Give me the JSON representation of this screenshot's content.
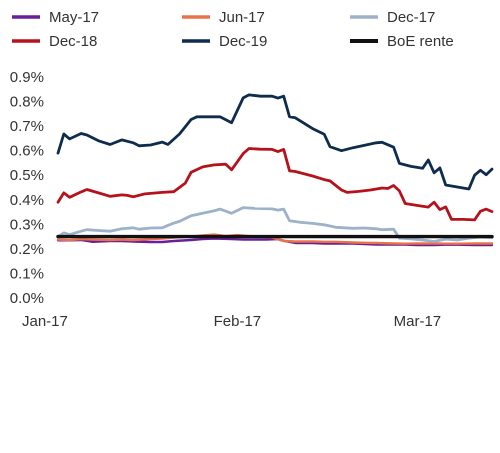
{
  "chart_data": {
    "type": "line",
    "title": "",
    "xlabel": "",
    "ylabel": "",
    "ylim": [
      0,
      0.9
    ],
    "y_unit": "%",
    "y_ticks": [
      "0.0%",
      "0.1%",
      "0.2%",
      "0.3%",
      "0.4%",
      "0.5%",
      "0.6%",
      "0.7%",
      "0.8%",
      "0.9%"
    ],
    "x_ticks": [
      "Jan-17",
      "Feb-17",
      "Mar-17"
    ],
    "grid": false,
    "legend_position": "top",
    "x_range": [
      "2017-01-01",
      "2017-03-17"
    ],
    "series": [
      {
        "name": "May-17",
        "color": "#6a1f9a",
        "points": [
          [
            "2017-01-01",
            0.235
          ],
          [
            "2017-01-03",
            0.235
          ],
          [
            "2017-01-05",
            0.236
          ],
          [
            "2017-01-07",
            0.229
          ],
          [
            "2017-01-10",
            0.232
          ],
          [
            "2017-01-12",
            0.232
          ],
          [
            "2017-01-14",
            0.23
          ],
          [
            "2017-01-17",
            0.228
          ],
          [
            "2017-01-19",
            0.228
          ],
          [
            "2017-01-21",
            0.232
          ],
          [
            "2017-01-24",
            0.236
          ],
          [
            "2017-01-26",
            0.24
          ],
          [
            "2017-01-28",
            0.242
          ],
          [
            "2017-01-31",
            0.24
          ],
          [
            "2017-02-02",
            0.238
          ],
          [
            "2017-02-04",
            0.238
          ],
          [
            "2017-02-06",
            0.238
          ],
          [
            "2017-02-08",
            0.24
          ],
          [
            "2017-02-09",
            0.233
          ],
          [
            "2017-02-11",
            0.224
          ],
          [
            "2017-02-14",
            0.224
          ],
          [
            "2017-02-16",
            0.222
          ],
          [
            "2017-02-18",
            0.222
          ],
          [
            "2017-02-21",
            0.222
          ],
          [
            "2017-02-23",
            0.22
          ],
          [
            "2017-02-25",
            0.218
          ],
          [
            "2017-02-28",
            0.218
          ],
          [
            "2017-03-02",
            0.218
          ],
          [
            "2017-03-04",
            0.216
          ],
          [
            "2017-03-07",
            0.216
          ],
          [
            "2017-03-09",
            0.217
          ],
          [
            "2017-03-11",
            0.217
          ],
          [
            "2017-03-14",
            0.216
          ],
          [
            "2017-03-17",
            0.216
          ]
        ]
      },
      {
        "name": "Jun-17",
        "color": "#e8734a",
        "points": [
          [
            "2017-01-01",
            0.238
          ],
          [
            "2017-01-03",
            0.236
          ],
          [
            "2017-01-05",
            0.24
          ],
          [
            "2017-01-07",
            0.238
          ],
          [
            "2017-01-10",
            0.236
          ],
          [
            "2017-01-12",
            0.238
          ],
          [
            "2017-01-14",
            0.236
          ],
          [
            "2017-01-17",
            0.24
          ],
          [
            "2017-01-19",
            0.242
          ],
          [
            "2017-01-21",
            0.246
          ],
          [
            "2017-01-24",
            0.25
          ],
          [
            "2017-01-26",
            0.255
          ],
          [
            "2017-01-28",
            0.258
          ],
          [
            "2017-01-30",
            0.252
          ],
          [
            "2017-02-01",
            0.256
          ],
          [
            "2017-02-03",
            0.252
          ],
          [
            "2017-02-05",
            0.25
          ],
          [
            "2017-02-07",
            0.246
          ],
          [
            "2017-02-09",
            0.232
          ],
          [
            "2017-02-11",
            0.23
          ],
          [
            "2017-02-14",
            0.23
          ],
          [
            "2017-02-16",
            0.229
          ],
          [
            "2017-02-18",
            0.229
          ],
          [
            "2017-02-21",
            0.226
          ],
          [
            "2017-02-23",
            0.225
          ],
          [
            "2017-02-25",
            0.224
          ],
          [
            "2017-02-28",
            0.222
          ],
          [
            "2017-03-02",
            0.221
          ],
          [
            "2017-03-04",
            0.222
          ],
          [
            "2017-03-07",
            0.222
          ],
          [
            "2017-03-09",
            0.221
          ],
          [
            "2017-03-11",
            0.221
          ],
          [
            "2017-03-14",
            0.222
          ],
          [
            "2017-03-17",
            0.222
          ]
        ]
      },
      {
        "name": "Dec-17",
        "color": "#9db1c8",
        "points": [
          [
            "2017-01-01",
            0.25
          ],
          [
            "2017-01-02",
            0.265
          ],
          [
            "2017-01-03",
            0.258
          ],
          [
            "2017-01-05",
            0.272
          ],
          [
            "2017-01-06",
            0.278
          ],
          [
            "2017-01-08",
            0.275
          ],
          [
            "2017-01-10",
            0.272
          ],
          [
            "2017-01-12",
            0.282
          ],
          [
            "2017-01-14",
            0.286
          ],
          [
            "2017-01-15",
            0.28
          ],
          [
            "2017-01-17",
            0.285
          ],
          [
            "2017-01-19",
            0.286
          ],
          [
            "2017-01-21",
            0.305
          ],
          [
            "2017-01-22",
            0.312
          ],
          [
            "2017-01-24",
            0.335
          ],
          [
            "2017-01-26",
            0.345
          ],
          [
            "2017-01-28",
            0.355
          ],
          [
            "2017-01-29",
            0.362
          ],
          [
            "2017-01-31",
            0.345
          ],
          [
            "2017-02-02",
            0.368
          ],
          [
            "2017-02-04",
            0.365
          ],
          [
            "2017-02-07",
            0.363
          ],
          [
            "2017-02-08",
            0.358
          ],
          [
            "2017-02-09",
            0.362
          ],
          [
            "2017-02-10",
            0.315
          ],
          [
            "2017-02-12",
            0.308
          ],
          [
            "2017-02-14",
            0.304
          ],
          [
            "2017-02-16",
            0.298
          ],
          [
            "2017-02-18",
            0.288
          ],
          [
            "2017-02-21",
            0.284
          ],
          [
            "2017-02-23",
            0.285
          ],
          [
            "2017-02-25",
            0.282
          ],
          [
            "2017-02-26",
            0.278
          ],
          [
            "2017-02-28",
            0.28
          ],
          [
            "2017-03-01",
            0.244
          ],
          [
            "2017-03-03",
            0.241
          ],
          [
            "2017-03-05",
            0.236
          ],
          [
            "2017-03-07",
            0.23
          ],
          [
            "2017-03-09",
            0.24
          ],
          [
            "2017-03-11",
            0.236
          ],
          [
            "2017-03-13",
            0.244
          ],
          [
            "2017-03-15",
            0.248
          ],
          [
            "2017-03-17",
            0.246
          ]
        ]
      },
      {
        "name": "Dec-18",
        "color": "#b5121b",
        "points": [
          [
            "2017-01-01",
            0.39
          ],
          [
            "2017-01-02",
            0.428
          ],
          [
            "2017-01-03",
            0.41
          ],
          [
            "2017-01-05",
            0.432
          ],
          [
            "2017-01-06",
            0.442
          ],
          [
            "2017-01-08",
            0.428
          ],
          [
            "2017-01-10",
            0.414
          ],
          [
            "2017-01-12",
            0.42
          ],
          [
            "2017-01-13",
            0.418
          ],
          [
            "2017-01-14",
            0.412
          ],
          [
            "2017-01-16",
            0.424
          ],
          [
            "2017-01-19",
            0.43
          ],
          [
            "2017-01-21",
            0.433
          ],
          [
            "2017-01-23",
            0.468
          ],
          [
            "2017-01-24",
            0.512
          ],
          [
            "2017-01-26",
            0.534
          ],
          [
            "2017-01-28",
            0.542
          ],
          [
            "2017-01-30",
            0.545
          ],
          [
            "2017-01-31",
            0.522
          ],
          [
            "2017-02-02",
            0.588
          ],
          [
            "2017-02-03",
            0.609
          ],
          [
            "2017-02-05",
            0.606
          ],
          [
            "2017-02-07",
            0.605
          ],
          [
            "2017-02-08",
            0.596
          ],
          [
            "2017-02-09",
            0.605
          ],
          [
            "2017-02-10",
            0.518
          ],
          [
            "2017-02-11",
            0.515
          ],
          [
            "2017-02-14",
            0.497
          ],
          [
            "2017-02-16",
            0.482
          ],
          [
            "2017-02-17",
            0.477
          ],
          [
            "2017-02-19",
            0.44
          ],
          [
            "2017-02-20",
            0.43
          ],
          [
            "2017-02-22",
            0.434
          ],
          [
            "2017-02-24",
            0.44
          ],
          [
            "2017-02-26",
            0.448
          ],
          [
            "2017-02-27",
            0.446
          ],
          [
            "2017-02-28",
            0.458
          ],
          [
            "2017-03-01",
            0.436
          ],
          [
            "2017-03-02",
            0.385
          ],
          [
            "2017-03-04",
            0.377
          ],
          [
            "2017-03-06",
            0.37
          ],
          [
            "2017-03-07",
            0.39
          ],
          [
            "2017-03-08",
            0.36
          ],
          [
            "2017-03-09",
            0.371
          ],
          [
            "2017-03-10",
            0.32
          ],
          [
            "2017-03-12",
            0.32
          ],
          [
            "2017-03-14",
            0.318
          ],
          [
            "2017-03-15",
            0.353
          ],
          [
            "2017-03-16",
            0.362
          ],
          [
            "2017-03-17",
            0.352
          ]
        ]
      },
      {
        "name": "Dec-19",
        "color": "#0e2c4e",
        "points": [
          [
            "2017-01-01",
            0.59
          ],
          [
            "2017-01-02",
            0.668
          ],
          [
            "2017-01-03",
            0.648
          ],
          [
            "2017-01-05",
            0.67
          ],
          [
            "2017-01-06",
            0.664
          ],
          [
            "2017-01-08",
            0.64
          ],
          [
            "2017-01-10",
            0.625
          ],
          [
            "2017-01-12",
            0.644
          ],
          [
            "2017-01-14",
            0.632
          ],
          [
            "2017-01-15",
            0.62
          ],
          [
            "2017-01-17",
            0.623
          ],
          [
            "2017-01-19",
            0.635
          ],
          [
            "2017-01-20",
            0.625
          ],
          [
            "2017-01-22",
            0.668
          ],
          [
            "2017-01-24",
            0.727
          ],
          [
            "2017-01-25",
            0.738
          ],
          [
            "2017-01-27",
            0.738
          ],
          [
            "2017-01-29",
            0.738
          ],
          [
            "2017-01-31",
            0.714
          ],
          [
            "2017-02-02",
            0.815
          ],
          [
            "2017-02-03",
            0.827
          ],
          [
            "2017-02-05",
            0.822
          ],
          [
            "2017-02-07",
            0.822
          ],
          [
            "2017-02-08",
            0.814
          ],
          [
            "2017-02-09",
            0.822
          ],
          [
            "2017-02-10",
            0.738
          ],
          [
            "2017-02-11",
            0.734
          ],
          [
            "2017-02-14",
            0.69
          ],
          [
            "2017-02-16",
            0.667
          ],
          [
            "2017-02-17",
            0.616
          ],
          [
            "2017-02-19",
            0.6
          ],
          [
            "2017-02-21",
            0.612
          ],
          [
            "2017-02-23",
            0.622
          ],
          [
            "2017-02-25",
            0.632
          ],
          [
            "2017-02-26",
            0.634
          ],
          [
            "2017-02-28",
            0.614
          ],
          [
            "2017-03-01",
            0.548
          ],
          [
            "2017-03-03",
            0.536
          ],
          [
            "2017-03-05",
            0.528
          ],
          [
            "2017-03-06",
            0.562
          ],
          [
            "2017-03-07",
            0.51
          ],
          [
            "2017-03-08",
            0.53
          ],
          [
            "2017-03-09",
            0.46
          ],
          [
            "2017-03-11",
            0.452
          ],
          [
            "2017-03-13",
            0.444
          ],
          [
            "2017-03-14",
            0.5
          ],
          [
            "2017-03-15",
            0.52
          ],
          [
            "2017-03-16",
            0.502
          ],
          [
            "2017-03-17",
            0.525
          ]
        ]
      },
      {
        "name": "BoE rente",
        "color": "#111111",
        "points": [
          [
            "2017-01-01",
            0.25
          ],
          [
            "2017-03-17",
            0.25
          ]
        ]
      }
    ]
  }
}
